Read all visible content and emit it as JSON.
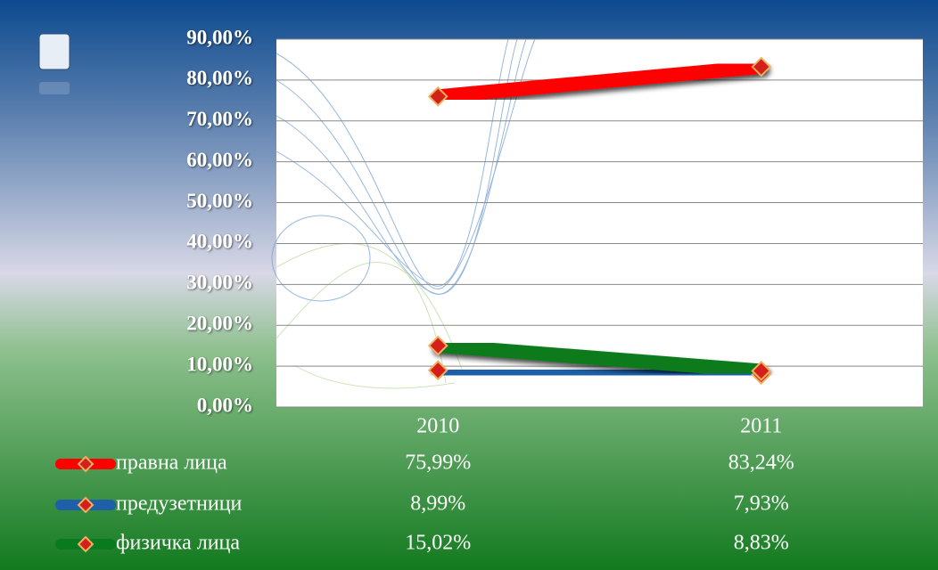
{
  "chart_data": {
    "type": "line",
    "categories": [
      "2010",
      "2011"
    ],
    "series": [
      {
        "name": "правна лица",
        "color": "#ff0000",
        "values": [
          75.99,
          83.24
        ],
        "value_labels": [
          "75,99%",
          "83,24%"
        ]
      },
      {
        "name": "предузетници",
        "color": "#1f5fa8",
        "values": [
          8.99,
          7.93
        ],
        "value_labels": [
          "8,99%",
          "7,93%"
        ]
      },
      {
        "name": "физичка лица",
        "color": "#0a7a1e",
        "values": [
          15.02,
          8.83
        ],
        "value_labels": [
          "15,02%",
          "8,83%"
        ]
      }
    ],
    "ylim": [
      0,
      90
    ],
    "yticks": [
      {
        "value": 0,
        "label": "0,00%"
      },
      {
        "value": 10,
        "label": "10,00%"
      },
      {
        "value": 20,
        "label": "20,00%"
      },
      {
        "value": 30,
        "label": "30,00%"
      },
      {
        "value": 40,
        "label": "40,00%"
      },
      {
        "value": 50,
        "label": "50,00%"
      },
      {
        "value": 60,
        "label": "60,00%"
      },
      {
        "value": 70,
        "label": "70,00%"
      },
      {
        "value": 80,
        "label": "80,00%"
      },
      {
        "value": 90,
        "label": "90,00%"
      }
    ],
    "grid": true
  }
}
